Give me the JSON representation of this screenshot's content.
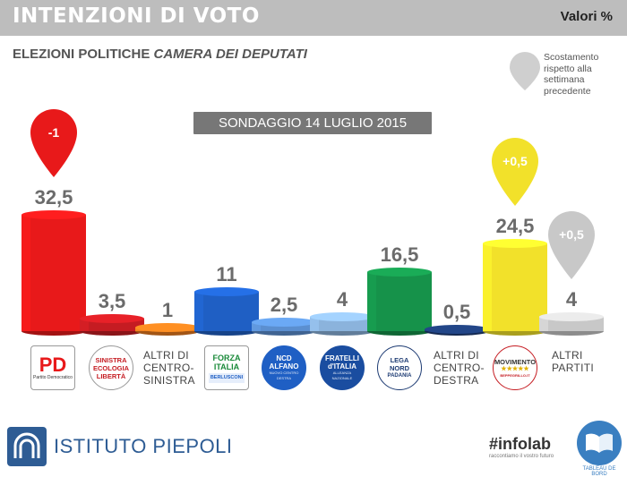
{
  "header": {
    "title": "INTENZIONI DI VOTO",
    "units": "Valori %"
  },
  "subtitle": {
    "main": "ELEZIONI POLITICHE",
    "italic": "CAMERA DEI DEPUTATI"
  },
  "survey_label": "SONDAGGIO 14 LUGLIO 2015",
  "legend_note": "Scostamento rispetto alla settimana precedente",
  "colors": {
    "header_bg": "#bdbdbd",
    "pd": "#e8191a",
    "sel": "#c51c22",
    "altri_cs": "#e87a1e",
    "fi": "#1f5fc4",
    "ncd": "#5b8fd0",
    "fdi": "#8bb3dc",
    "lega": "#16924a",
    "altri_cd": "#1d3b73",
    "m5s": "#f2e12a",
    "altri": "#c8c8c8"
  },
  "chart_data": {
    "type": "bar",
    "categories": [
      "Partito Democratico",
      "Sinistra Ecologia Libertà",
      "Altri di centro-sinistra",
      "Forza Italia",
      "NCD Alfano",
      "Fratelli d'Italia",
      "Lega Nord",
      "Altri di centro-destra",
      "Movimento 5 Stelle",
      "Altri partiti"
    ],
    "values": [
      32.5,
      3.5,
      1,
      11,
      2.5,
      4,
      16.5,
      0.5,
      24.5,
      4
    ],
    "value_labels": [
      "32,5",
      "3,5",
      "1",
      "11",
      "2,5",
      "4",
      "16,5",
      "0,5",
      "24,5",
      "4"
    ],
    "series_colors": [
      "#e8191a",
      "#c51c22",
      "#e87a1e",
      "#1f5fc4",
      "#5b8fd0",
      "#8bb3dc",
      "#16924a",
      "#1d3b73",
      "#f2e12a",
      "#c8c8c8"
    ],
    "changes": [
      {
        "index": 0,
        "label": "-1",
        "color": "#e8191a"
      },
      {
        "index": 8,
        "label": "+0,5",
        "color": "#f2e12a"
      },
      {
        "index": 9,
        "label": "+0,5",
        "color": "#c8c8c8"
      }
    ],
    "title": "SONDAGGIO 14 LUGLIO 2015",
    "ylim": [
      0,
      35
    ]
  },
  "logos": {
    "pd": {
      "text": "PD",
      "sub": "Partito Democratico"
    },
    "sel": {
      "text": "SINISTRA ECOLOGIA LIBERTÀ"
    },
    "fi": {
      "text": "FORZA ITALIA",
      "sub": "BERLUSCONI"
    },
    "ncd": {
      "text": "NCD ALFANO",
      "sub": "NUOVO CENTRO DESTRA"
    },
    "fdi": {
      "text": "FRATELLI d'ITALIA",
      "sub": "ALLEANZA NAZIONALE"
    },
    "lega": {
      "text": "LEGA NORD",
      "sub": "PADANIA"
    },
    "m5s": {
      "text": "MOVIMENTO",
      "sub": "BEPPEGRILLO.IT"
    }
  },
  "altri_labels": {
    "cs": [
      "ALTRI DI",
      "CENTRO-",
      "SINISTRA"
    ],
    "cd": [
      "ALTRI DI",
      "CENTRO-",
      "DESTRA"
    ],
    "ap": [
      "ALTRI",
      "PARTITI"
    ]
  },
  "footer": {
    "left": "ISTITUTO PIEPOLI",
    "mid": "#infolab",
    "mid_slogan": "raccontiamo il vostro futuro",
    "right": "TABLEAU DE BORD"
  }
}
